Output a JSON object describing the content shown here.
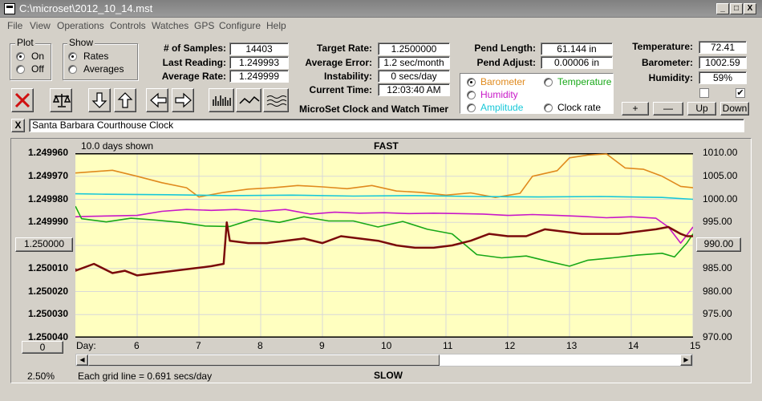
{
  "window": {
    "title": "C:\\microset\\2012_10_14.mst",
    "buttons": [
      "_",
      "□",
      "X"
    ]
  },
  "menu": [
    "File",
    "View",
    "Operations",
    "Controls",
    "Watches",
    "GPS",
    "Configure",
    "Help"
  ],
  "plot_group": {
    "title": "Plot",
    "options": [
      "On",
      "Off"
    ],
    "selected": "On"
  },
  "show_group": {
    "title": "Show",
    "options": [
      "Rates",
      "Averages"
    ],
    "selected": "Rates"
  },
  "stats": {
    "samples_label": "# of Samples:",
    "samples": "14403",
    "last_label": "Last Reading:",
    "last": "1.249993",
    "avg_label": "Average Rate:",
    "avg": "1.249999",
    "target_label": "Target Rate:",
    "target": "1.2500000",
    "error_label": "Average Error:",
    "error": "1.2 sec/month",
    "instab_label": "Instability:",
    "instab": "0 secs/day",
    "time_label": "Current Time:",
    "time": "12:03:40 AM",
    "pend_len_label": "Pend Length:",
    "pend_len": "61.144 in",
    "pend_adj_label": "Pend Adjust:",
    "pend_adj": "0.00006 in",
    "temp_label": "Temperature:",
    "temp": "72.41",
    "baro_label": "Barometer:",
    "baro": "1002.59",
    "hum_label": "Humidity:",
    "hum": "59%"
  },
  "app_caption": "MicroSet Clock and Watch Timer",
  "sensor_select": {
    "options": [
      {
        "label": "Barometer",
        "color": "#e08a1e",
        "selected": true
      },
      {
        "label": "Temperature",
        "color": "#18a818",
        "selected": false
      },
      {
        "label": "Humidity",
        "color": "#c818c8",
        "selected": false
      },
      {
        "label": "Amplitude",
        "color": "#18c8d8",
        "selected": false
      },
      {
        "label": "Clock rate",
        "color": "#000000",
        "selected": false
      }
    ]
  },
  "scale_buttons": [
    "+",
    "—",
    "Up",
    "Down"
  ],
  "checkboxes": [
    false,
    true
  ],
  "clock_name": "Santa Barbara Courthouse Clock",
  "close_x": "X",
  "chart": {
    "days_shown": "10.0 days shown",
    "top_label": "FAST",
    "bottom_label": "SLOW",
    "center_button": "1.250000",
    "right_button": "990.00",
    "zero_button": "0",
    "percent": "2.50%",
    "grid_note": "Each grid line = 0.691 secs/day",
    "day_label": "Day:"
  },
  "chart_data": {
    "type": "line",
    "xlim": [
      5,
      15
    ],
    "x_ticks": [
      "6",
      "7",
      "8",
      "9",
      "10",
      "11",
      "12",
      "13",
      "14",
      "15"
    ],
    "y_left_ticks": [
      "1.249960",
      "1.249970",
      "1.249980",
      "1.249990",
      "1.250000",
      "1.250010",
      "1.250020",
      "1.250030",
      "1.250040"
    ],
    "y_left_range": [
      1.24996,
      1.25004
    ],
    "y_right_ticks": [
      "1010.00",
      "1005.00",
      "1000.00",
      "995.00",
      "990.00",
      "985.00",
      "980.00",
      "975.00",
      "970.00"
    ],
    "y_right_range": [
      1010,
      970
    ],
    "grid": true,
    "series": [
      {
        "name": "Barometer",
        "axis": "right",
        "color": "#e08a1e",
        "x": [
          4.7,
          5.2,
          5.6,
          6.0,
          6.4,
          6.8,
          7.0,
          7.4,
          7.8,
          8.2,
          8.6,
          9.0,
          9.4,
          9.8,
          10.2,
          10.6,
          11.0,
          11.4,
          11.8,
          12.2,
          12.4,
          12.8,
          13.0,
          13.3,
          13.6,
          13.9,
          14.2,
          14.5,
          14.8,
          15.0
        ],
        "y": [
          1005.7,
          1005.9,
          1006.3,
          1005.0,
          1003.6,
          1002.5,
          1000.5,
          1001.5,
          1002.2,
          1002.5,
          1003.0,
          1002.7,
          1002.3,
          1003.0,
          1001.8,
          1001.5,
          1000.9,
          1001.4,
          1000.4,
          1001.3,
          1005.0,
          1006.2,
          1009.0,
          1009.6,
          1010.0,
          1006.8,
          1006.5,
          1005.0,
          1002.8,
          1002.5
        ]
      },
      {
        "name": "Amplitude",
        "axis": "right",
        "color": "#18c8d8",
        "x": [
          4.7,
          5.5,
          6.5,
          7.5,
          8.5,
          9.5,
          10.5,
          11.5,
          12.5,
          13.5,
          14.5,
          15.0
        ],
        "y": [
          1001.2,
          1001.1,
          1001.0,
          1000.8,
          1000.9,
          1000.7,
          1000.8,
          1000.6,
          1000.5,
          1000.6,
          1000.4,
          1000.0
        ]
      },
      {
        "name": "Humidity",
        "axis": "right",
        "color": "#c818c8",
        "x": [
          4.7,
          5.2,
          5.6,
          6.0,
          6.4,
          6.8,
          7.2,
          7.6,
          8.0,
          8.4,
          8.8,
          9.2,
          9.6,
          10.0,
          10.4,
          10.8,
          11.2,
          11.6,
          12.0,
          12.4,
          12.8,
          13.2,
          13.6,
          14.0,
          14.4,
          14.6,
          14.8,
          15.0
        ],
        "y": [
          996.2,
          996.3,
          996.4,
          996.5,
          997.4,
          997.8,
          997.6,
          997.8,
          997.4,
          997.8,
          996.8,
          997.2,
          997.0,
          997.1,
          996.9,
          997.0,
          996.9,
          996.8,
          996.5,
          996.7,
          996.5,
          996.3,
          996.0,
          996.2,
          995.9,
          994.0,
          990.5,
          994.0
        ]
      },
      {
        "name": "Temperature",
        "axis": "right",
        "color": "#18a818",
        "x": [
          4.7,
          5.1,
          5.5,
          5.9,
          6.3,
          6.7,
          7.1,
          7.5,
          7.9,
          8.3,
          8.7,
          9.1,
          9.5,
          9.9,
          10.3,
          10.7,
          11.1,
          11.5,
          11.9,
          12.3,
          12.7,
          13.0,
          13.3,
          13.7,
          14.1,
          14.5,
          14.7,
          14.9,
          15.0
        ],
        "y": [
          998.5,
          995.8,
          995.1,
          995.9,
          995.5,
          995.0,
          994.2,
          994.1,
          995.8,
          995.0,
          996.2,
          995.3,
          995.3,
          994.0,
          995.2,
          993.5,
          992.5,
          988.0,
          987.3,
          987.7,
          986.4,
          985.5,
          986.8,
          987.3,
          987.9,
          988.3,
          987.5,
          990.5,
          992.5
        ]
      },
      {
        "name": "Clock rate",
        "axis": "left",
        "color": "#7a0a0a",
        "x": [
          4.7,
          5.0,
          5.3,
          5.6,
          5.8,
          6.0,
          6.3,
          6.6,
          6.9,
          7.2,
          7.4,
          7.45,
          7.5,
          7.8,
          8.1,
          8.4,
          8.7,
          9.0,
          9.3,
          9.6,
          9.9,
          10.2,
          10.5,
          10.8,
          11.1,
          11.4,
          11.7,
          12.0,
          12.3,
          12.6,
          12.9,
          13.2,
          13.5,
          13.8,
          14.1,
          14.4,
          14.6,
          14.8,
          14.9,
          15.0
        ],
        "y": [
          1.25001,
          1.250011,
          1.250008,
          1.250012,
          1.250011,
          1.250013,
          1.250012,
          1.250011,
          1.25001,
          1.250009,
          1.250008,
          1.24999,
          1.249998,
          1.249999,
          1.249999,
          1.249998,
          1.249997,
          1.249999,
          1.249996,
          1.249997,
          1.249998,
          1.25,
          1.250001,
          1.250001,
          1.25,
          1.249998,
          1.249995,
          1.249996,
          1.249996,
          1.249993,
          1.249994,
          1.249995,
          1.249995,
          1.249995,
          1.249994,
          1.249993,
          1.249992,
          1.249995,
          1.249996,
          1.249996
        ]
      }
    ]
  }
}
